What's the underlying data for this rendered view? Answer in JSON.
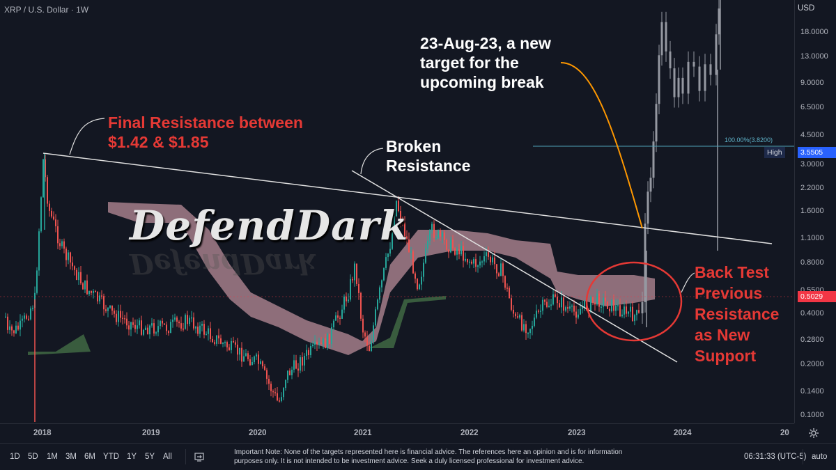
{
  "symbol_title": "XRP / U.S. Dollar · 1W",
  "currency": "USD",
  "price_axis": {
    "ticks": [
      "18.0000",
      "13.0000",
      "9.0000",
      "6.5000",
      "4.5000",
      "3.0000",
      "2.2000",
      "1.6000",
      "1.1000",
      "0.8000",
      "0.5500",
      "0.4000",
      "0.2800",
      "0.2000",
      "0.1400",
      "0.1000"
    ],
    "high_label": "High",
    "high_value": "3.5505",
    "last_value": "0.5029",
    "high_color": "#2962ff",
    "last_color": "#f23645"
  },
  "time_axis": {
    "years": [
      "2018",
      "2019",
      "2020",
      "2021",
      "2022",
      "2023",
      "2024",
      "20"
    ]
  },
  "fib_label": "100.00%(3.8200)",
  "annotations": {
    "final_resistance": [
      "Final Resistance between",
      "$1.42 & $1.85"
    ],
    "broken_resistance": [
      "Broken",
      "Resistance"
    ],
    "new_target": [
      "23-Aug-23, a new",
      "target for the",
      "upcoming break"
    ],
    "back_test": [
      "Back Test",
      "Previous",
      "Resistance",
      "as New",
      "Support"
    ]
  },
  "watermark": "DefendDark",
  "bottom_bar": {
    "ranges": [
      "1D",
      "5D",
      "1M",
      "3M",
      "6M",
      "YTD",
      "1Y",
      "5Y",
      "All"
    ],
    "note": "Important Note: None of the targets represented here is financial advice. The references here an opinion and is for information purposes only. It is not intended to be investment advice. Seek a duly licensed professional for investment advice.",
    "clock": "06:31:33 (UTC-5)",
    "auto": "auto"
  },
  "colors": {
    "background": "#131722",
    "candle_up": "#26a69a",
    "candle_down": "#ef5350",
    "cloud": "#f4b6c2",
    "annotation_red": "#e53935",
    "projection": "#9598a1",
    "fib_line": "#4fa3b8",
    "arrow_orange": "#ff9800"
  },
  "icons": {
    "compare": "compare-icon",
    "settings": "gear-icon"
  }
}
